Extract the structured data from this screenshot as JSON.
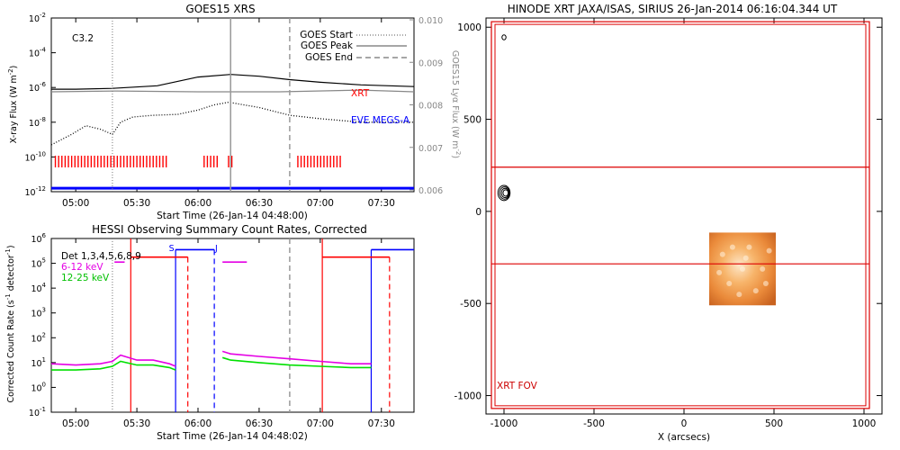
{
  "chart_data": [
    {
      "id": "goes",
      "type": "line",
      "title": "GOES15 XRS",
      "xlabel": "Start Time (26-Jan-14 04:48:00)",
      "ylabel": "X-ray Flux (W m",
      "ylabel_sup": "-2",
      "ylabel_end": ")",
      "y2label": "GOES15 Lyα Flux (W m",
      "y2label_sup": "-2",
      "y2label_end": ")",
      "x_ticks": [
        "05:00",
        "05:30",
        "06:00",
        "06:30",
        "07:00",
        "07:30"
      ],
      "x_tick_minutes": [
        300,
        330,
        360,
        390,
        420,
        450
      ],
      "xlim_minutes": [
        288,
        466
      ],
      "y_ticks_exp": [
        -2,
        -4,
        -6,
        -8,
        -10,
        -12
      ],
      "ylim_exp": [
        -12,
        -2
      ],
      "y2_ticks": [
        "0.010",
        "0.009",
        "0.008",
        "0.007",
        "0.006"
      ],
      "class_label": "C3.2",
      "legend": [
        {
          "name": "GOES Start",
          "style": "dotted"
        },
        {
          "name": "GOES Peak",
          "style": "solid"
        },
        {
          "name": "GOES End",
          "style": "dashed"
        }
      ],
      "event_minutes": {
        "start": 318,
        "peak": 376,
        "end": 405
      },
      "series_labels": [
        {
          "name": "XRT",
          "color": "#ff0000"
        },
        {
          "name": "EVE MEGS-A",
          "color": "#0000ff"
        }
      ],
      "series": [
        {
          "name": "GOES long",
          "color": "#000000",
          "x_minutes": [
            288,
            300,
            318,
            340,
            360,
            376,
            390,
            405,
            420,
            440,
            466
          ],
          "y_exp": [
            -6.1,
            -6.1,
            -6.05,
            -5.9,
            -5.4,
            -5.25,
            -5.35,
            -5.55,
            -5.7,
            -5.85,
            -5.95
          ]
        },
        {
          "name": "Lyman-alpha",
          "color": "#888888",
          "x_minutes": [
            288,
            320,
            360,
            400,
            440,
            466
          ],
          "y_exp": [
            -6.25,
            -6.2,
            -6.25,
            -6.25,
            -6.15,
            -6.25
          ]
        },
        {
          "name": "GOES short",
          "color": "#000000",
          "style": "dotted",
          "x_minutes": [
            288,
            298,
            305,
            312,
            318,
            322,
            328,
            338,
            350,
            360,
            368,
            375,
            390,
            405,
            420,
            440,
            466
          ],
          "y_exp": [
            -9.3,
            -8.7,
            -8.2,
            -8.4,
            -8.7,
            -8.0,
            -7.7,
            -7.6,
            -7.55,
            -7.3,
            -7.0,
            -6.85,
            -7.15,
            -7.6,
            -7.8,
            -8.0,
            -8.0
          ]
        }
      ],
      "xrt_coverage_minutes": [
        [
          290,
          345
        ],
        [
          363,
          371
        ],
        [
          375,
          377
        ],
        [
          409,
          431
        ]
      ],
      "eve_level_exp": -11.8
    },
    {
      "id": "hessi",
      "type": "line",
      "title": "HESSI Observing Summary Count Rates, Corrected",
      "xlabel": "Start Time (26-Jan-14 04:48:02)",
      "ylabel": "Corrected Count Rate (s",
      "ylabel_sup": "-1",
      "ylabel_end": " detector",
      "ylabel_sup2": "-1",
      "ylabel_end2": ")",
      "x_ticks": [
        "05:00",
        "05:30",
        "06:00",
        "06:30",
        "07:00",
        "07:30"
      ],
      "x_tick_minutes": [
        300,
        330,
        360,
        390,
        420,
        450
      ],
      "xlim_minutes": [
        288,
        466
      ],
      "y_ticks_exp": [
        6,
        5,
        4,
        3,
        2,
        1,
        0,
        -1
      ],
      "ylim_exp": [
        -1,
        6
      ],
      "legend": [
        {
          "name": "Det 1,3,4,5,6,8,9",
          "color": "#000000"
        },
        {
          "name": "6-12 keV",
          "color": "#e400e4"
        },
        {
          "name": "12-25 keV",
          "color": "#00e000"
        }
      ],
      "event_minutes": {
        "start": 318,
        "end": 405
      },
      "night_red_solid_minutes": [
        327,
        421
      ],
      "night_red_dashed_minutes": [
        355,
        454
      ],
      "saa_blue_solid_minutes": [
        349,
        445
      ],
      "saa_blue_dashed_minutes": [
        368
      ],
      "top_markers": [
        {
          "label": "S",
          "minute": 347
        },
        {
          "label": "J",
          "minute": 369
        }
      ],
      "series": [
        {
          "name": "6-12 keV",
          "color": "#e400e4",
          "segments": [
            {
              "x_minutes": [
                288,
                300,
                312,
                318,
                322,
                330,
                338,
                346,
                349
              ],
              "y_exp": [
                0.95,
                0.9,
                0.95,
                1.05,
                1.3,
                1.1,
                1.1,
                0.95,
                0.85
              ]
            },
            {
              "x_minutes": [
                372,
                376,
                390,
                405,
                420,
                435,
                445
              ],
              "y_exp": [
                1.45,
                1.35,
                1.25,
                1.15,
                1.05,
                0.95,
                0.95
              ]
            }
          ]
        },
        {
          "name": "12-25 keV",
          "color": "#00e000",
          "segments": [
            {
              "x_minutes": [
                288,
                300,
                312,
                318,
                322,
                330,
                338,
                346,
                349
              ],
              "y_exp": [
                0.7,
                0.7,
                0.75,
                0.85,
                1.05,
                0.9,
                0.9,
                0.8,
                0.7
              ]
            },
            {
              "x_minutes": [
                372,
                376,
                390,
                405,
                420,
                435,
                445
              ],
              "y_exp": [
                1.2,
                1.1,
                1.0,
                0.9,
                0.85,
                0.8,
                0.8
              ]
            }
          ]
        },
        {
          "name": "Det counts high",
          "color": "#ff0000",
          "segments": [
            {
              "x_minutes": [
                327,
                355
              ],
              "y_exp": [
                5.25,
                5.25
              ]
            },
            {
              "x_minutes": [
                421,
                454
              ],
              "y_exp": [
                5.25,
                5.25
              ]
            }
          ]
        },
        {
          "name": "Det counts saa",
          "color": "#0000ff",
          "segments": [
            {
              "x_minutes": [
                349,
                368
              ],
              "y_exp": [
                5.55,
                5.55
              ]
            },
            {
              "x_minutes": [
                445,
                466
              ],
              "y_exp": [
                5.55,
                5.55
              ]
            }
          ]
        },
        {
          "name": "6-12 keV flag",
          "color": "#e400e4",
          "segments": [
            {
              "x_minutes": [
                319,
                324
              ],
              "y_exp": [
                5.05,
                5.05
              ]
            },
            {
              "x_minutes": [
                372,
                384
              ],
              "y_exp": [
                5.05,
                5.05
              ]
            }
          ]
        }
      ]
    },
    {
      "id": "xrt",
      "type": "scatter",
      "title": "HINODE XRT JAXA/ISAS, SIRIUS 26-Jan-2014 06:16:04.344 UT",
      "xlabel": "X (arcsecs)",
      "ylabel": "",
      "x_ticks": [
        -1000,
        -500,
        0,
        500,
        1000
      ],
      "y_ticks": [
        1000,
        500,
        0,
        -500,
        -1000
      ],
      "xlim": [
        -1100,
        1100
      ],
      "ylim": [
        -1100,
        1050
      ],
      "fov_label": "XRT FOV",
      "fov_box": [
        -1070,
        1030,
        -1070,
        1030
      ],
      "horizontal_lines_y": [
        240,
        -285
      ],
      "image_box": [
        140,
        510,
        -510,
        -115
      ],
      "contours": [
        {
          "x": -1000,
          "y": 945,
          "r": 14
        },
        {
          "x": -1000,
          "y": 100,
          "r": 42
        }
      ]
    }
  ]
}
